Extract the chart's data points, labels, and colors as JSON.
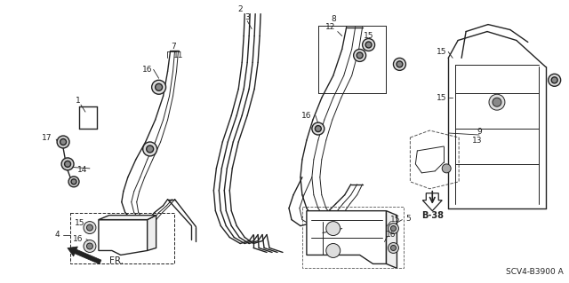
{
  "diagram_code": "SCV4-B3900 A",
  "background_color": "#ffffff",
  "line_color": "#222222",
  "figsize": [
    6.4,
    3.19
  ],
  "dpi": 100
}
